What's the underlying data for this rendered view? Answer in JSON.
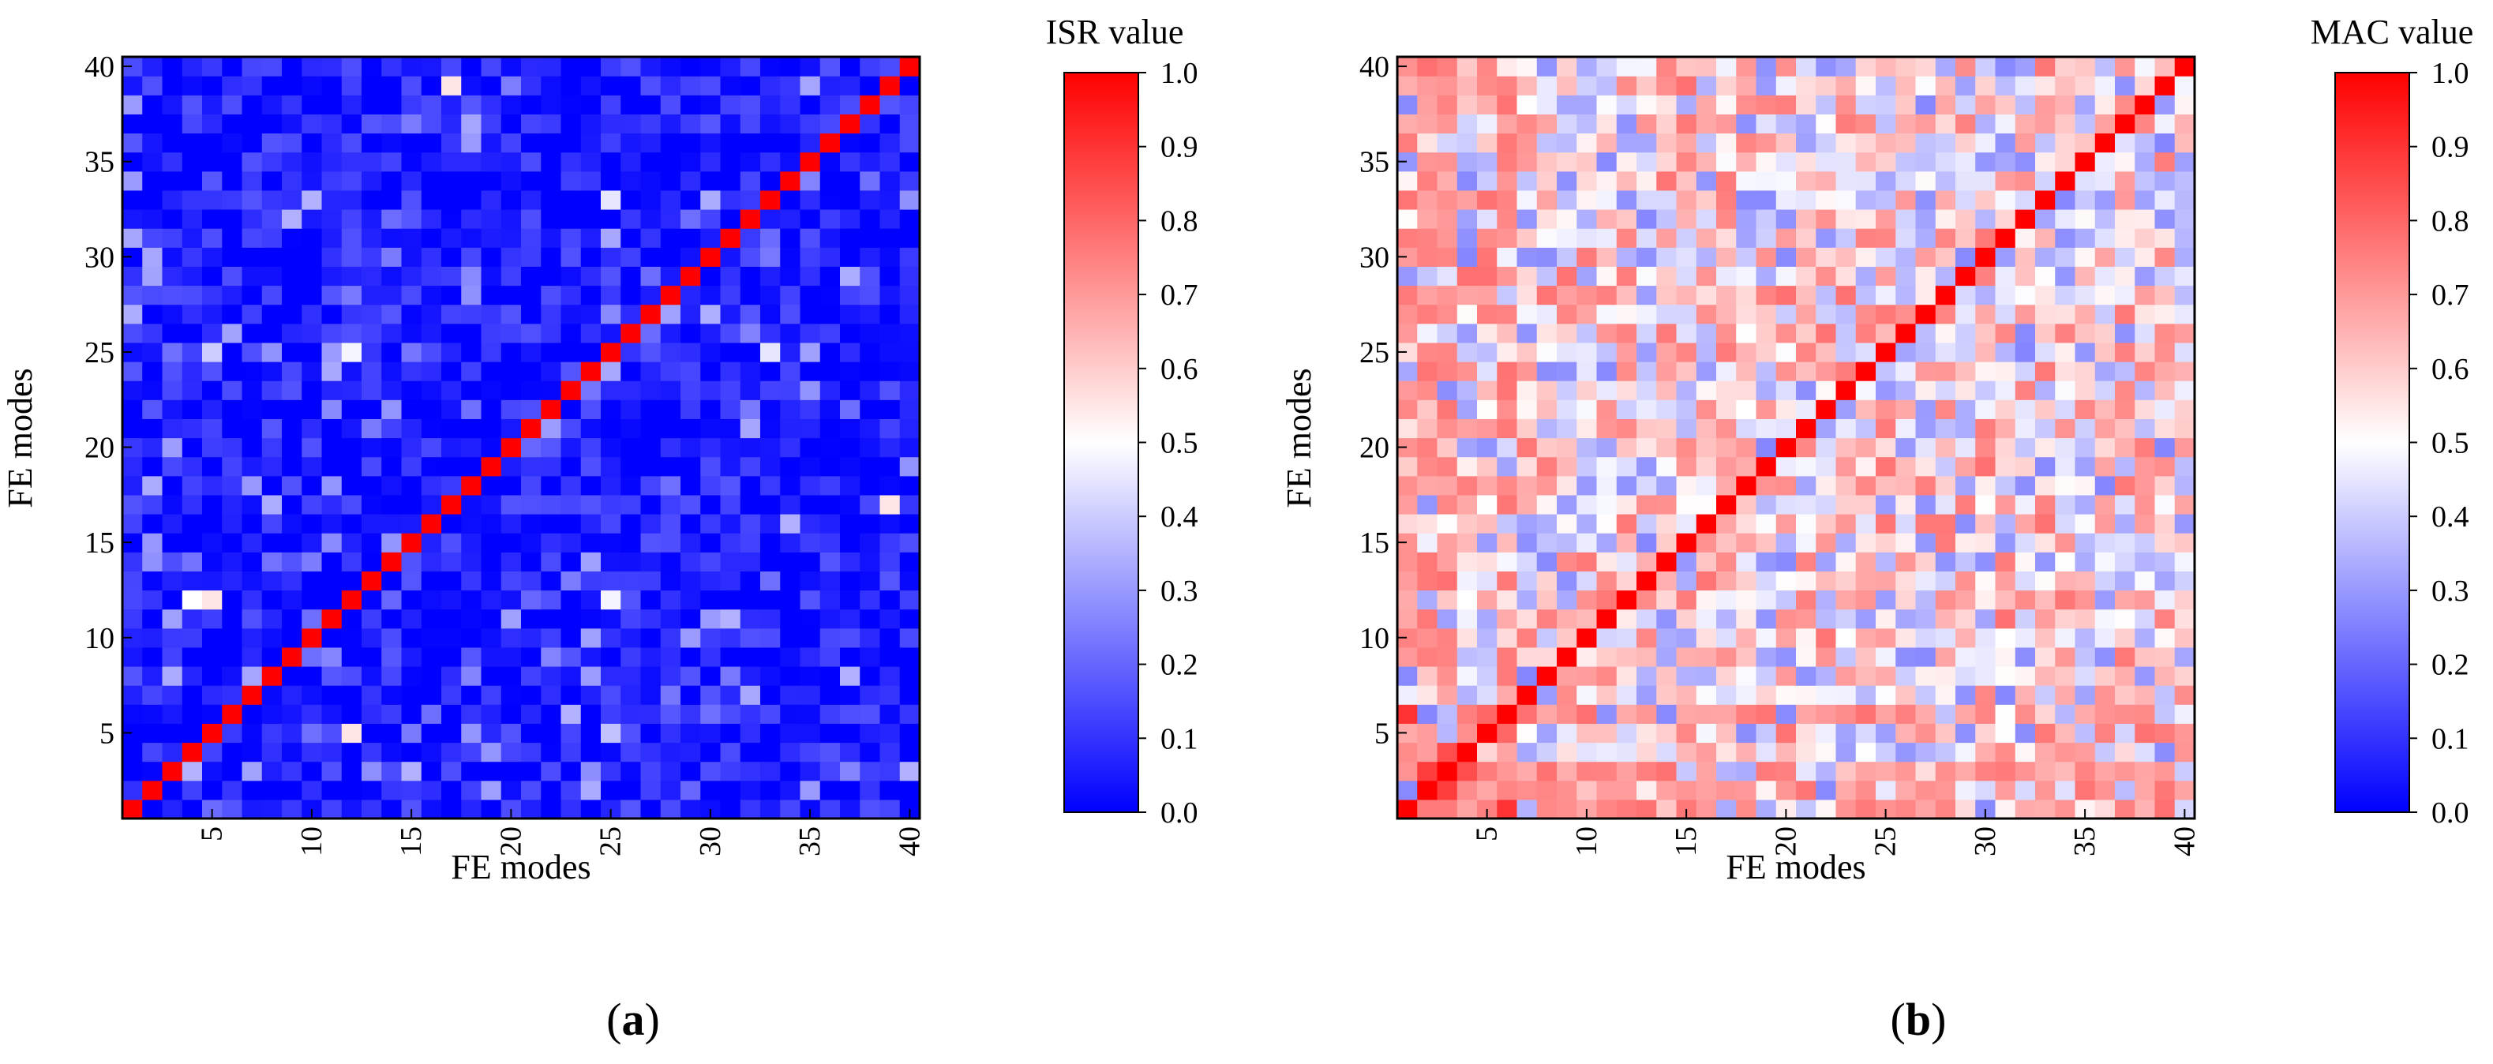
{
  "figure": {
    "panels": [
      "a",
      "b"
    ]
  },
  "chart_data": [
    {
      "type": "heatmap",
      "panel_label": "a",
      "title": "",
      "xlabel": "FE modes",
      "ylabel": "FE modes",
      "colorbar_title": "ISR value",
      "colormap": "blue-white-red",
      "x_range": [
        1,
        40
      ],
      "y_range": [
        1,
        40
      ],
      "x_ticks": [
        5,
        10,
        15,
        20,
        25,
        30,
        35,
        40
      ],
      "y_ticks": [
        5,
        10,
        15,
        20,
        25,
        30,
        35,
        40
      ],
      "colorbar_ticks": [
        "0.0",
        "0.1",
        "0.2",
        "0.3",
        "0.4",
        "0.5",
        "0.6",
        "0.7",
        "0.8",
        "0.9",
        "1.0"
      ],
      "value_range": [
        0.0,
        1.0
      ],
      "diagonal_value": 1.0,
      "off_diagonal_base": 0.04,
      "off_diagonal_spread": 0.13,
      "highlights": [
        {
          "x": 12,
          "y": 5,
          "value": 0.55
        },
        {
          "x": 5,
          "y": 12,
          "value": 0.55
        },
        {
          "x": 4,
          "y": 12,
          "value": 0.5
        },
        {
          "x": 39,
          "y": 17,
          "value": 0.55
        },
        {
          "x": 17,
          "y": 39,
          "value": 0.55
        },
        {
          "x": 25,
          "y": 12,
          "value": 0.48
        },
        {
          "x": 12,
          "y": 25,
          "value": 0.48
        },
        {
          "x": 25,
          "y": 33,
          "value": 0.45
        },
        {
          "x": 33,
          "y": 25,
          "value": 0.45
        },
        {
          "x": 5,
          "y": 25,
          "value": 0.4
        },
        {
          "x": 25,
          "y": 5,
          "value": 0.38
        },
        {
          "x": 4,
          "y": 3,
          "value": 0.35
        }
      ]
    },
    {
      "type": "heatmap",
      "panel_label": "b",
      "title": "",
      "xlabel": "FE modes",
      "ylabel": "FE modes",
      "colorbar_title": "MAC value",
      "colormap": "blue-white-red",
      "x_range": [
        1,
        40
      ],
      "y_range": [
        1,
        40
      ],
      "x_ticks": [
        5,
        10,
        15,
        20,
        25,
        30,
        35,
        40
      ],
      "y_ticks": [
        5,
        10,
        15,
        20,
        25,
        30,
        35,
        40
      ],
      "colorbar_ticks": [
        "0.0",
        "0.1",
        "0.2",
        "0.3",
        "0.4",
        "0.5",
        "0.6",
        "0.7",
        "0.8",
        "0.9",
        "1.0"
      ],
      "value_range": [
        0.0,
        1.0
      ],
      "diagonal_value": 1.0,
      "off_diagonal_base": 0.52,
      "off_diagonal_spread": 0.26,
      "strong_rows_cols": [
        1,
        2,
        3,
        6
      ],
      "strong_value": 0.72,
      "highlights": [
        {
          "x": 6,
          "y": 1,
          "value": 0.9
        },
        {
          "x": 1,
          "y": 6,
          "value": 0.9
        },
        {
          "x": 3,
          "y": 2,
          "value": 0.88
        },
        {
          "x": 2,
          "y": 3,
          "value": 0.88
        },
        {
          "x": 4,
          "y": 3,
          "value": 0.85
        },
        {
          "x": 3,
          "y": 4,
          "value": 0.85
        },
        {
          "x": 6,
          "y": 5,
          "value": 0.8
        },
        {
          "x": 5,
          "y": 6,
          "value": 0.8
        },
        {
          "x": 7,
          "y": 6,
          "value": 0.78
        }
      ]
    }
  ]
}
